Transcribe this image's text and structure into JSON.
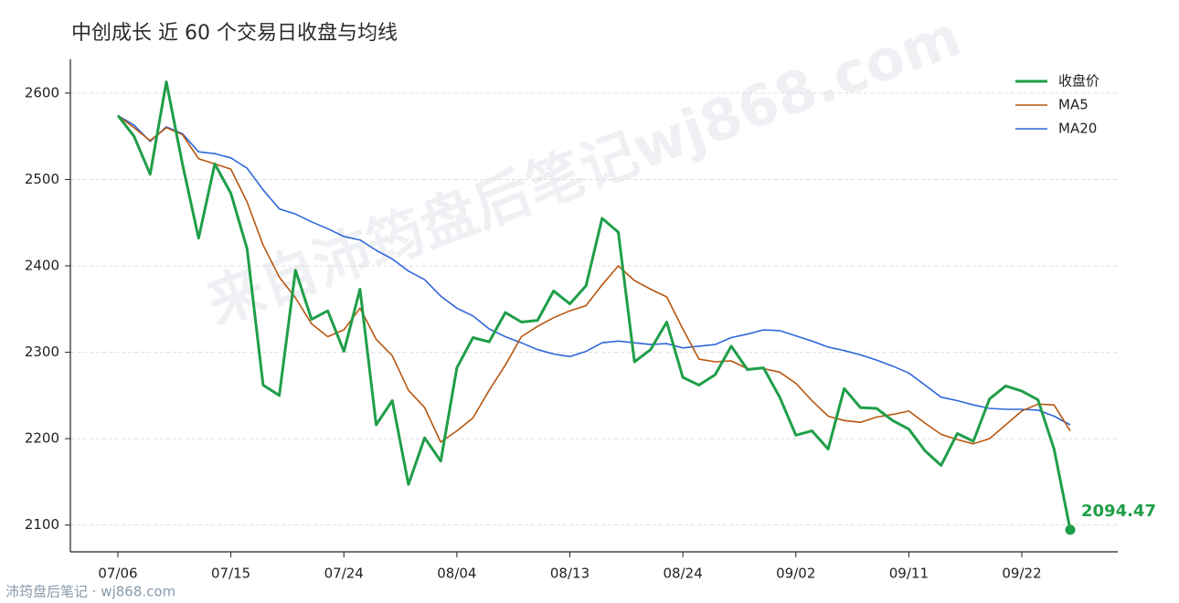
{
  "chart_data": {
    "type": "line",
    "title": "中创成长 近 60 个交易日收盘与均线",
    "watermark": "来自沛筠盘后笔记wj868.com",
    "footer": "沛筠盘后笔记 · wj868.com",
    "categories": [
      "07/06",
      null,
      null,
      null,
      null,
      null,
      null,
      "07/15",
      null,
      null,
      null,
      null,
      null,
      null,
      "07/24",
      null,
      null,
      null,
      null,
      null,
      null,
      "08/04",
      null,
      null,
      null,
      null,
      null,
      null,
      "08/13",
      null,
      null,
      null,
      null,
      null,
      null,
      "08/24",
      null,
      null,
      null,
      null,
      null,
      null,
      "09/02",
      null,
      null,
      null,
      null,
      null,
      null,
      "09/11",
      null,
      null,
      null,
      null,
      null,
      null,
      "09/22",
      null,
      null,
      null
    ],
    "series": [
      {
        "name": "收盘价",
        "color": "#1f9e48",
        "width": 3,
        "values": [
          2574,
          2550,
          2506,
          2613,
          2518,
          2432,
          2518,
          2484,
          2420,
          2262,
          2250,
          2395,
          2338,
          2348,
          2301,
          2373,
          2216,
          2244,
          2147,
          2201,
          2174,
          2282,
          2317,
          2312,
          2346,
          2335,
          2337,
          2371,
          2356,
          2377,
          2455,
          2439,
          2289,
          2303,
          2335,
          2271,
          2262,
          2274,
          2307,
          2280,
          2282,
          2248,
          2204,
          2209,
          2188,
          2258,
          2236,
          2235,
          2221,
          2211,
          2186,
          2169,
          2206,
          2197,
          2246,
          2261,
          2255,
          2245,
          2188,
          2094.47
        ],
        "value_labels": [
          null,
          null,
          null,
          null,
          null,
          null,
          null,
          null,
          null,
          null,
          null,
          null,
          null,
          null,
          null,
          null,
          null,
          null,
          null,
          null,
          null,
          null,
          null,
          null,
          null,
          null,
          null,
          null,
          null,
          null,
          null,
          null,
          null,
          null,
          null,
          null,
          null,
          null,
          null,
          null,
          null,
          null,
          null,
          null,
          null,
          null,
          null,
          null,
          null,
          null,
          null,
          null,
          null,
          null,
          null,
          null,
          null,
          null,
          null,
          "2094.47"
        ]
      },
      {
        "name": "MA5",
        "color": "#b8560f",
        "width": 1.6,
        "values": [
          2574,
          2560,
          2545,
          2560,
          2552,
          2524,
          2518,
          2512,
          2474,
          2424,
          2387,
          2363,
          2333,
          2318,
          2326,
          2351,
          2315,
          2296,
          2256,
          2236,
          2196,
          2209,
          2224,
          2256,
          2285,
          2318,
          2330,
          2340,
          2348,
          2354,
          2378,
          2400,
          2383,
          2373,
          2364,
          2327,
          2292,
          2289,
          2290,
          2281,
          2281,
          2277,
          2264,
          2244,
          2226,
          2221,
          2219,
          2225,
          2228,
          2232,
          2218,
          2205,
          2199,
          2194,
          2200,
          2216,
          2232,
          2240,
          2239,
          2209
        ]
      },
      {
        "name": "MA20",
        "color": "#2f67d8",
        "width": 1.6,
        "values": [
          2574,
          2563,
          2544,
          2561,
          2553,
          2532,
          2530,
          2525,
          2513,
          2488,
          2466,
          2460,
          2451,
          2443,
          2434,
          2430,
          2418,
          2408,
          2394,
          2384,
          2365,
          2351,
          2342,
          2327,
          2318,
          2311,
          2303,
          2298,
          2295,
          2301,
          2311,
          2313,
          2311,
          2309,
          2310,
          2305,
          2307,
          2309,
          2317,
          2321,
          2326,
          2325,
          2319,
          2313,
          2306,
          2302,
          2297,
          2291,
          2284,
          2276,
          2262,
          2248,
          2244,
          2239,
          2235,
          2234,
          2234,
          2233,
          2226,
          2216
        ]
      }
    ],
    "ylim": [
      2069,
      2639
    ],
    "yticks": [
      2100,
      2200,
      2300,
      2400,
      2500,
      2600
    ],
    "grid": true,
    "legend": "top-right"
  }
}
